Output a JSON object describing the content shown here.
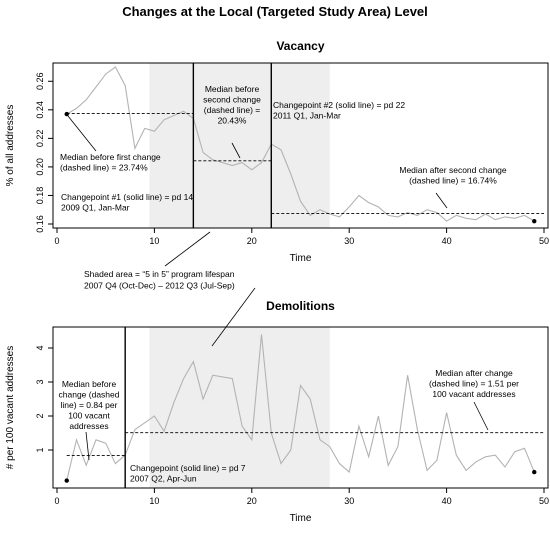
{
  "figure_title": "Changes at the Local (Targeted Study Area) Level",
  "shaded_note": {
    "lines": [
      "Shaded area = “5 in 5” program lifespan",
      "2007 Q4 (Oct-Dec) – 2012 Q3 (Jul-Sep)"
    ]
  },
  "chart_data": [
    {
      "type": "line",
      "title": "Vacancy",
      "xlabel": "Time",
      "ylabel": "% of all addresses",
      "xlim": [
        0,
        50
      ],
      "ylim": [
        0.16,
        0.27
      ],
      "xticks": [
        0,
        10,
        20,
        30,
        40,
        50
      ],
      "yticks": [
        0.16,
        0.18,
        0.2,
        0.22,
        0.24,
        0.26
      ],
      "ytick_labels": [
        "0.16",
        "0.18",
        "0.20",
        "0.22",
        "0.24",
        "0.26"
      ],
      "x": [
        1,
        2,
        3,
        4,
        5,
        6,
        7,
        8,
        9,
        10,
        11,
        12,
        13,
        14,
        15,
        16,
        17,
        18,
        19,
        20,
        21,
        22,
        23,
        24,
        25,
        26,
        27,
        28,
        29,
        30,
        31,
        32,
        33,
        34,
        35,
        36,
        37,
        38,
        39,
        40,
        41,
        42,
        43,
        44,
        45,
        46,
        47,
        48,
        49
      ],
      "y": [
        0.237,
        0.241,
        0.247,
        0.256,
        0.265,
        0.27,
        0.257,
        0.213,
        0.227,
        0.225,
        0.233,
        0.236,
        0.239,
        0.234,
        0.21,
        0.205,
        0.203,
        0.201,
        0.203,
        0.198,
        0.203,
        0.216,
        0.212,
        0.195,
        0.176,
        0.166,
        0.17,
        0.167,
        0.165,
        0.172,
        0.18,
        0.175,
        0.172,
        0.166,
        0.165,
        0.168,
        0.166,
        0.17,
        0.168,
        0.162,
        0.166,
        0.164,
        0.163,
        0.167,
        0.163,
        0.165,
        0.164,
        0.166,
        0.162
      ],
      "shaded_region": [
        9.5,
        28
      ],
      "changepoints": [
        14,
        22
      ],
      "medians": [
        {
          "from": 1,
          "to": 14,
          "value": 0.2374
        },
        {
          "from": 14,
          "to": 22,
          "value": 0.2043
        },
        {
          "from": 22,
          "to": 50,
          "value": 0.1674
        }
      ],
      "endpoints": [
        {
          "x": 1,
          "y": 0.237
        },
        {
          "x": 49,
          "y": 0.162
        }
      ],
      "annotations": [
        {
          "lines": [
            "Median before first change",
            "(dashed line) = 23.74%"
          ]
        },
        {
          "lines": [
            "Median before",
            "second change",
            "(dashed line) =",
            "20.43%"
          ]
        },
        {
          "lines": [
            "Changepoint  #2 (solid line) = pd 22",
            "2011 Q1, Jan-Mar"
          ]
        },
        {
          "lines": [
            "Median after second change",
            "(dashed line) = 16.74%"
          ]
        },
        {
          "lines": [
            "Changepoint #1 (solid line) = pd 14",
            "2009 Q1, Jan-Mar"
          ]
        }
      ]
    },
    {
      "type": "line",
      "title": "Demolitions",
      "xlabel": "Time",
      "ylabel": "# per 100 vacant addresses",
      "xlim": [
        0,
        50
      ],
      "ylim": [
        0,
        4.5
      ],
      "xticks": [
        0,
        10,
        20,
        30,
        40,
        50
      ],
      "yticks": [
        1,
        2,
        3,
        4
      ],
      "ytick_labels": [
        "1",
        "2",
        "3",
        "4"
      ],
      "x": [
        1,
        2,
        3,
        4,
        5,
        6,
        7,
        8,
        9,
        10,
        11,
        12,
        13,
        14,
        15,
        16,
        17,
        18,
        19,
        20,
        21,
        22,
        23,
        24,
        25,
        26,
        27,
        28,
        29,
        30,
        31,
        32,
        33,
        34,
        35,
        36,
        37,
        38,
        39,
        40,
        41,
        42,
        43,
        44,
        45,
        46,
        47,
        48,
        49
      ],
      "y": [
        0.1,
        1.3,
        0.55,
        1.3,
        1.2,
        0.6,
        0.85,
        1.6,
        1.8,
        2.0,
        1.55,
        2.4,
        3.1,
        3.6,
        2.5,
        3.2,
        3.15,
        3.1,
        1.7,
        1.3,
        4.4,
        1.5,
        0.6,
        1.0,
        2.9,
        2.5,
        1.3,
        1.1,
        0.6,
        0.35,
        1.7,
        0.8,
        2.0,
        0.55,
        1.1,
        3.2,
        1.6,
        0.4,
        0.7,
        2.1,
        0.85,
        0.4,
        0.65,
        0.8,
        0.85,
        0.5,
        0.95,
        1.05,
        0.35
      ],
      "shaded_region": [
        9.5,
        28
      ],
      "changepoints": [
        7
      ],
      "medians": [
        {
          "from": 1,
          "to": 7,
          "value": 0.84
        },
        {
          "from": 7,
          "to": 50,
          "value": 1.51
        }
      ],
      "endpoints": [
        {
          "x": 1,
          "y": 0.1
        },
        {
          "x": 49,
          "y": 0.35
        }
      ],
      "annotations": [
        {
          "lines": [
            "Median before",
            "change (dashed",
            "line) = 0.84 per",
            "100 vacant",
            "addresses"
          ]
        },
        {
          "lines": [
            "Median after change",
            "(dashed line) = 1.51 per",
            "100 vacant addresses"
          ]
        },
        {
          "lines": [
            "Changepoint (solid line) = pd 7",
            "2007 Q2, Apr-Jun"
          ]
        }
      ]
    }
  ]
}
